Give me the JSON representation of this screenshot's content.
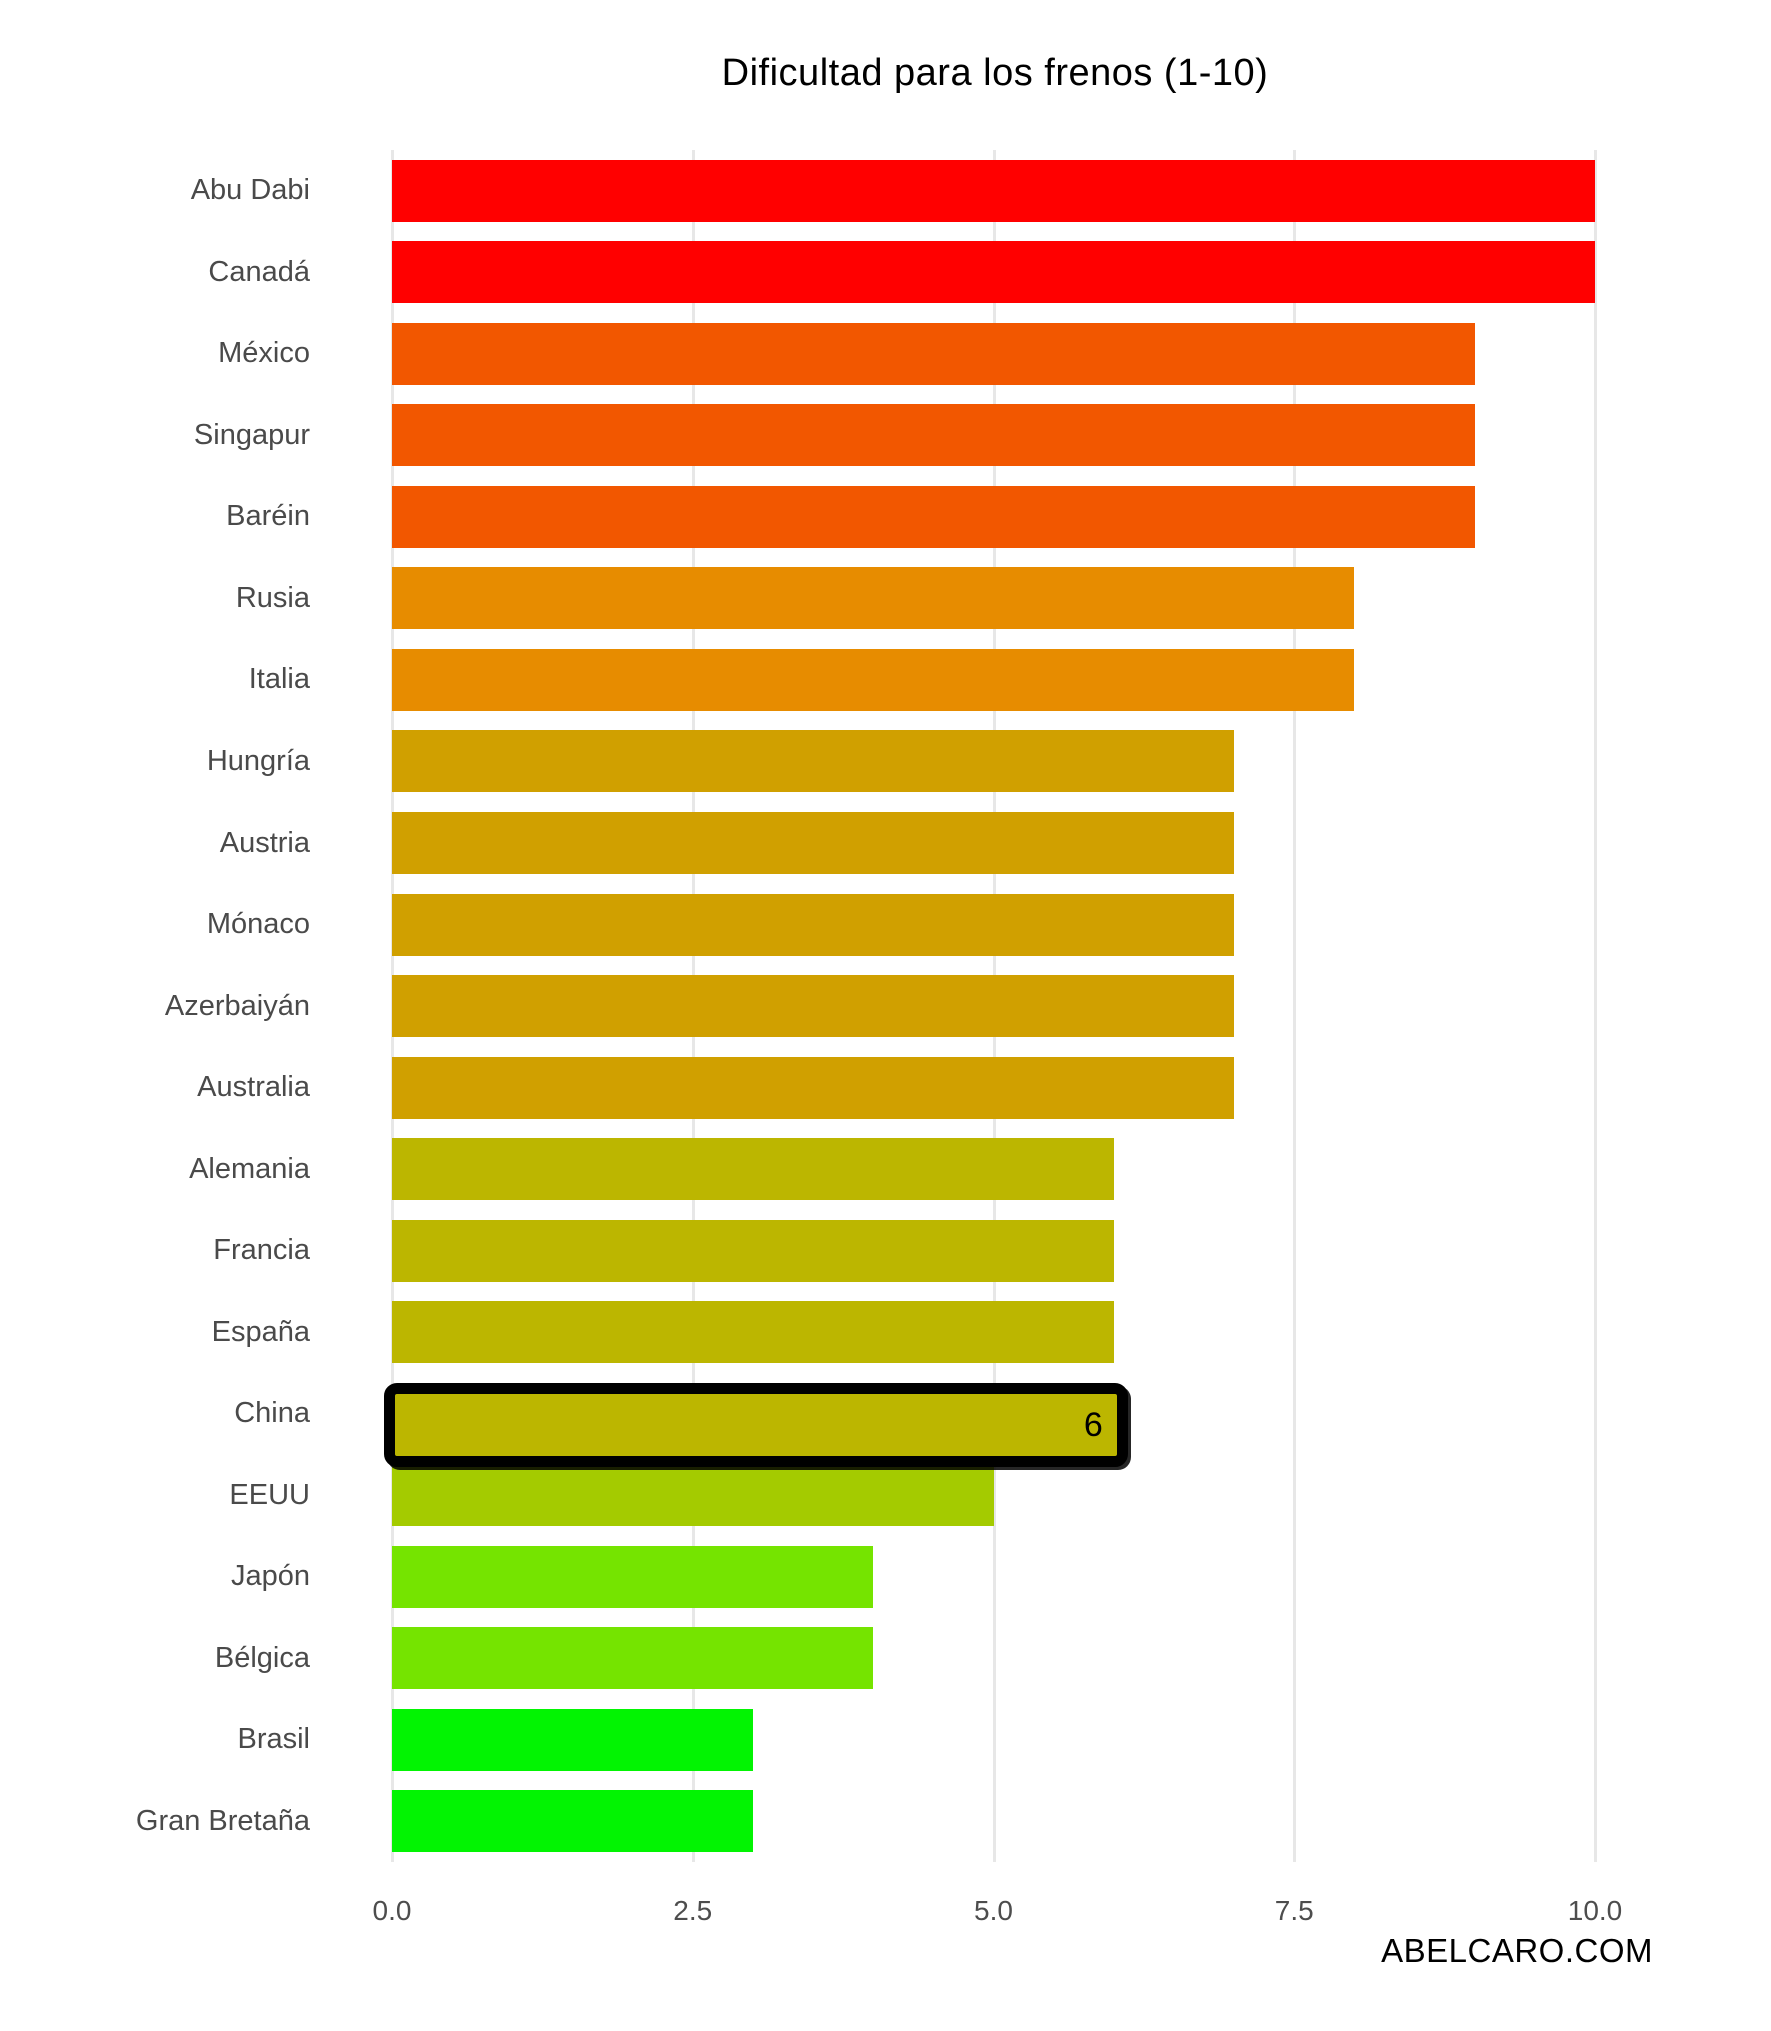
{
  "title": "Dificultad para los frenos (1-10)",
  "watermark": "ABELCARO.COM",
  "chart_data": {
    "type": "bar",
    "orientation": "horizontal",
    "title": "Dificultad para los frenos (1-10)",
    "categories": [
      "Abu Dabi",
      "Canadá",
      "México",
      "Singapur",
      "Baréin",
      "Rusia",
      "Italia",
      "Hungría",
      "Austria",
      "Mónaco",
      "Azerbaiyán",
      "Australia",
      "Alemania",
      "Francia",
      "España",
      "China",
      "EEUU",
      "Japón",
      "Bélgica",
      "Brasil",
      "Gran Bretaña"
    ],
    "values": [
      10,
      10,
      9,
      9,
      9,
      8,
      8,
      7,
      7,
      7,
      7,
      7,
      6,
      6,
      6,
      6,
      5,
      4,
      4,
      3,
      3
    ],
    "bar_colors": [
      "#FF0000",
      "#FF0000",
      "#F25700",
      "#F25700",
      "#F25700",
      "#E78C00",
      "#E78C00",
      "#D0A000",
      "#D0A000",
      "#D0A000",
      "#D0A000",
      "#D0A000",
      "#BCB600",
      "#BCB600",
      "#BCB600",
      "#BCB600",
      "#A4CB00",
      "#75E400",
      "#75E400",
      "#02F402",
      "#02F402"
    ],
    "highlight": {
      "category": "China",
      "value_label": "6",
      "border_color": "#000000"
    },
    "xlim": [
      0,
      10
    ],
    "x_ticks": [
      0,
      2.5,
      5,
      7.5,
      10
    ],
    "x_tick_labels": [
      "0.0",
      "2.5",
      "5.0",
      "7.5",
      "10.0"
    ],
    "grid": true,
    "gridline_color": "#e7e7e7",
    "legend": false,
    "xlabel": "",
    "ylabel": ""
  }
}
